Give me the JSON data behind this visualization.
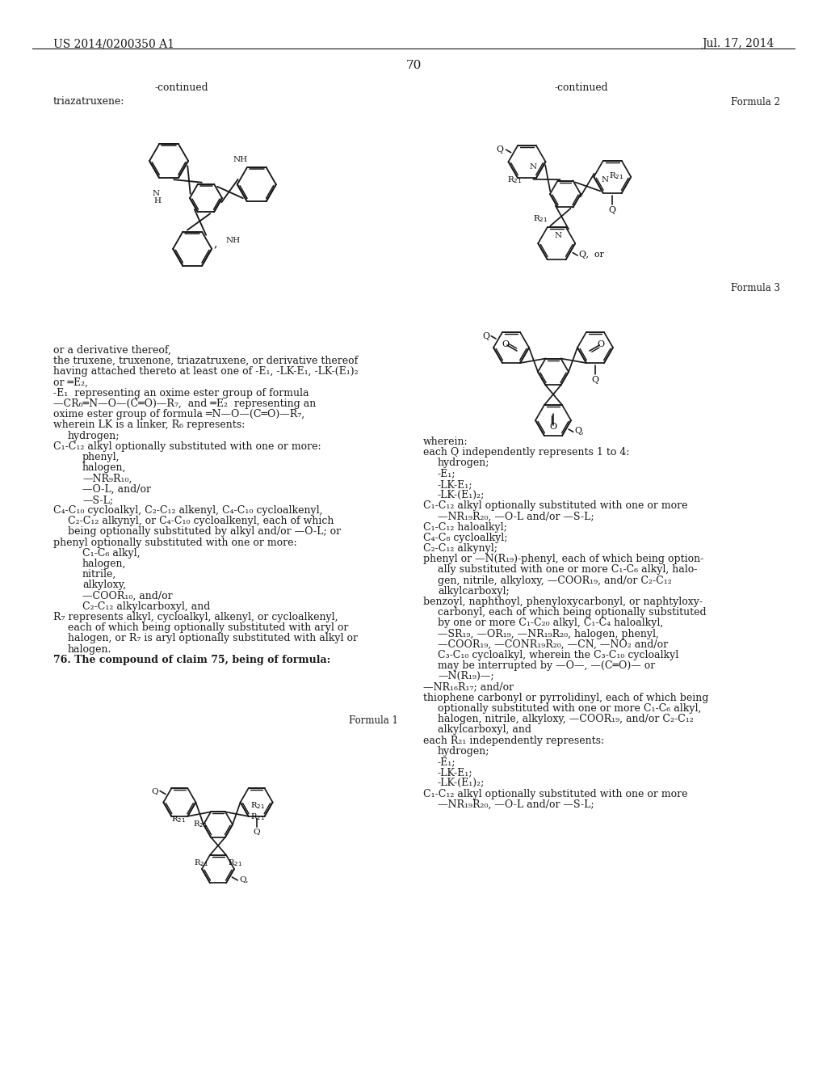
{
  "page_number": "70",
  "header_left": "US 2014/0200350 A1",
  "header_right": "Jul. 17, 2014",
  "background_color": "#ffffff",
  "text_color": "#1a1a1a",
  "font_size_body": 9.2,
  "font_size_header": 10.5,
  "font_size_page": 11
}
